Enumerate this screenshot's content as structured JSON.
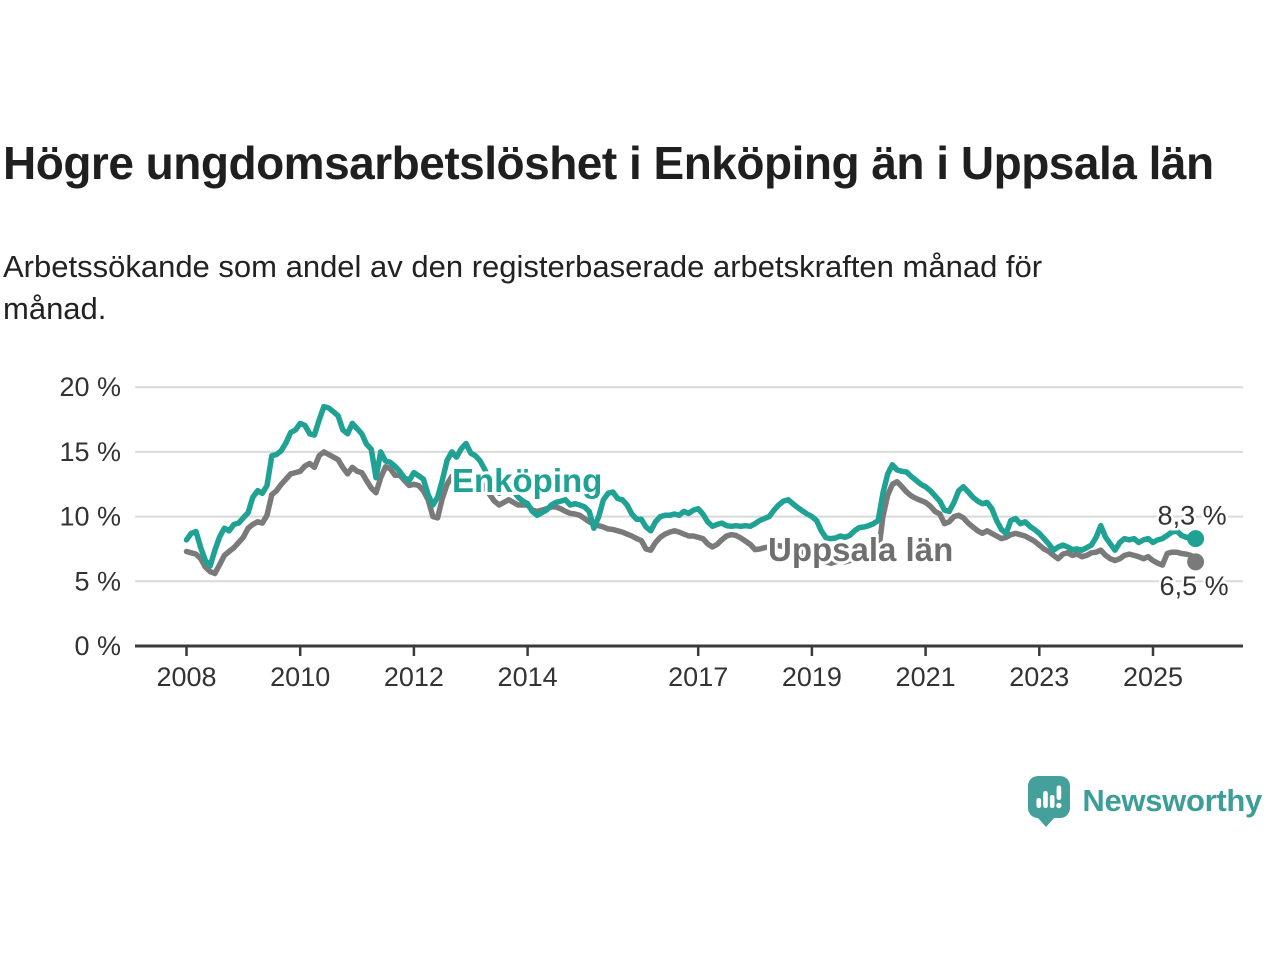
{
  "header": {
    "title": "Högre ungdomsarbetslöshet i Enköping än i Uppsala län",
    "subtitle": "Arbetssökande som andel av den registerbaserade arbetskraften månad för månad."
  },
  "chart_data": {
    "type": "line",
    "x_unit": "month",
    "x_start": "2008-01",
    "x_end": "2025-10",
    "grid": "horizontal",
    "ylim": [
      0,
      21.5
    ],
    "x_ticks": [
      {
        "year": 2008,
        "label": "2008"
      },
      {
        "year": 2010,
        "label": "2010"
      },
      {
        "year": 2012,
        "label": "2012"
      },
      {
        "year": 2014,
        "label": "2014"
      },
      {
        "year": 2017,
        "label": "2017"
      },
      {
        "year": 2019,
        "label": "2019"
      },
      {
        "year": 2021,
        "label": "2021"
      },
      {
        "year": 2023,
        "label": "2023"
      },
      {
        "year": 2025,
        "label": "2025"
      }
    ],
    "y_ticks": [
      {
        "value": 20,
        "label": "20 %"
      },
      {
        "value": 15,
        "label": "15 %"
      },
      {
        "value": 10,
        "label": "10 %"
      },
      {
        "value": 5,
        "label": "5 %"
      },
      {
        "value": 0,
        "label": "0 %"
      }
    ],
    "style": {
      "grid_color": "#d9d9d9",
      "axis_color": "#3a3a3a",
      "tick_color": "#333333",
      "halo_color": "#ffffff"
    },
    "series": [
      {
        "name": "Enköping",
        "color": "#1fa294",
        "label_color": "#1fa294",
        "end_label": "8,3 %",
        "end_value": 8.3,
        "values": [
          8.2,
          8.7,
          8.85,
          7.6,
          6.6,
          6.2,
          7.4,
          8.45,
          9.1,
          8.9,
          9.4,
          9.5,
          9.9,
          10.3,
          11.5,
          12.0,
          11.8,
          12.4,
          14.7,
          14.8,
          15.1,
          15.7,
          16.5,
          16.7,
          17.2,
          17.05,
          16.4,
          16.3,
          17.45,
          18.5,
          18.4,
          18.1,
          17.8,
          16.7,
          16.4,
          17.2,
          16.8,
          16.4,
          15.6,
          15.2,
          13.0,
          15.0,
          14.3,
          14.2,
          13.9,
          13.5,
          13.0,
          12.8,
          13.4,
          13.15,
          12.9,
          11.7,
          10.9,
          11.5,
          12.8,
          14.35,
          15.0,
          14.6,
          15.25,
          15.65,
          14.9,
          14.7,
          14.3,
          13.6,
          12.8,
          12.2,
          11.8,
          12.2,
          12.5,
          12.0,
          11.5,
          11.2,
          11.0,
          10.4,
          10.1,
          10.3,
          10.5,
          10.9,
          11.1,
          11.2,
          11.3,
          10.9,
          11.0,
          10.9,
          10.75,
          10.4,
          9.1,
          10.0,
          11.3,
          11.8,
          11.9,
          11.4,
          11.3,
          10.9,
          10.2,
          9.8,
          9.8,
          9.2,
          8.9,
          9.6,
          10.0,
          10.1,
          10.1,
          10.2,
          10.1,
          10.4,
          10.25,
          10.5,
          10.6,
          10.2,
          9.6,
          9.25,
          9.4,
          9.5,
          9.3,
          9.25,
          9.3,
          9.25,
          9.3,
          9.25,
          9.45,
          9.7,
          9.85,
          10.0,
          10.5,
          10.9,
          11.2,
          11.3,
          11.0,
          10.7,
          10.45,
          10.2,
          10.0,
          9.7,
          8.9,
          8.35,
          8.3,
          8.35,
          8.5,
          8.4,
          8.55,
          8.9,
          9.15,
          9.2,
          9.3,
          9.45,
          9.7,
          11.8,
          13.3,
          14.0,
          13.6,
          13.5,
          13.45,
          13.1,
          12.8,
          12.5,
          12.3,
          12.0,
          11.6,
          11.2,
          10.5,
          10.4,
          11.1,
          12.0,
          12.3,
          11.9,
          11.5,
          11.2,
          11.0,
          11.1,
          10.6,
          9.7,
          9.0,
          8.7,
          9.7,
          9.85,
          9.45,
          9.6,
          9.25,
          9.0,
          8.7,
          8.3,
          7.9,
          7.4,
          7.65,
          7.8,
          7.65,
          7.45,
          7.5,
          7.4,
          7.6,
          7.8,
          8.4,
          9.3,
          8.4,
          7.9,
          7.4,
          8.0,
          8.3,
          8.2,
          8.3,
          8.0,
          8.2,
          8.3,
          8.0,
          8.2,
          8.3,
          8.55,
          8.8,
          8.9,
          8.55,
          8.4,
          8.4,
          8.3
        ]
      },
      {
        "name": "Uppsala län",
        "color": "#7a7a7a",
        "label_color": "#6f6f6f",
        "end_label": "6,5 %",
        "end_value": 6.5,
        "values": [
          7.3,
          7.2,
          7.1,
          6.75,
          6.1,
          5.75,
          5.6,
          6.3,
          7.0,
          7.3,
          7.6,
          8.0,
          8.4,
          9.1,
          9.4,
          9.6,
          9.5,
          10.1,
          11.7,
          12.0,
          12.5,
          12.9,
          13.3,
          13.4,
          13.5,
          13.9,
          14.1,
          13.8,
          14.7,
          15.0,
          14.8,
          14.6,
          14.4,
          13.8,
          13.3,
          13.8,
          13.5,
          13.4,
          12.8,
          12.2,
          11.85,
          13.0,
          13.85,
          13.7,
          13.2,
          13.2,
          12.8,
          12.4,
          12.5,
          12.4,
          12.0,
          11.3,
          10.0,
          9.9,
          11.4,
          12.5,
          13.1,
          13.2,
          13.3,
          13.4,
          13.2,
          13.0,
          12.7,
          12.2,
          11.7,
          11.2,
          10.9,
          11.1,
          11.3,
          11.1,
          10.9,
          10.9,
          10.9,
          10.5,
          10.4,
          10.5,
          10.6,
          10.75,
          10.75,
          10.6,
          10.4,
          10.25,
          10.2,
          10.1,
          9.85,
          9.6,
          9.45,
          9.3,
          9.2,
          9.05,
          9.0,
          8.9,
          8.8,
          8.65,
          8.5,
          8.3,
          8.15,
          7.5,
          7.4,
          8.0,
          8.4,
          8.65,
          8.8,
          8.9,
          8.8,
          8.65,
          8.5,
          8.5,
          8.4,
          8.3,
          7.9,
          7.65,
          7.85,
          8.2,
          8.5,
          8.6,
          8.55,
          8.35,
          8.1,
          7.85,
          7.45,
          7.5,
          7.6,
          7.65,
          7.7,
          7.75,
          7.7,
          7.6,
          7.5,
          7.4,
          7.25,
          7.1,
          7.0,
          6.9,
          6.7,
          6.5,
          6.4,
          6.5,
          6.6,
          6.5,
          6.6,
          6.7,
          6.8,
          6.9,
          6.6,
          6.75,
          7.1,
          10.0,
          11.65,
          12.5,
          12.7,
          12.3,
          11.9,
          11.6,
          11.4,
          11.25,
          11.1,
          10.8,
          10.4,
          10.2,
          9.45,
          9.6,
          10.0,
          10.1,
          9.9,
          9.5,
          9.2,
          8.9,
          8.7,
          8.9,
          8.7,
          8.5,
          8.3,
          8.4,
          8.6,
          8.7,
          8.6,
          8.5,
          8.3,
          8.1,
          7.8,
          7.5,
          7.3,
          7.0,
          6.75,
          7.1,
          7.2,
          7.0,
          7.1,
          6.9,
          7.0,
          7.2,
          7.25,
          7.4,
          7.0,
          6.75,
          6.6,
          6.75,
          7.0,
          7.1,
          7.0,
          6.9,
          6.75,
          6.9,
          6.6,
          6.4,
          6.25,
          7.15,
          7.25,
          7.25,
          7.15,
          7.1,
          7.0,
          6.5
        ]
      }
    ]
  },
  "footer": {
    "brand": "Newsworthy",
    "brand_color": "#3d9e98",
    "icon_color": "#45a09b"
  }
}
